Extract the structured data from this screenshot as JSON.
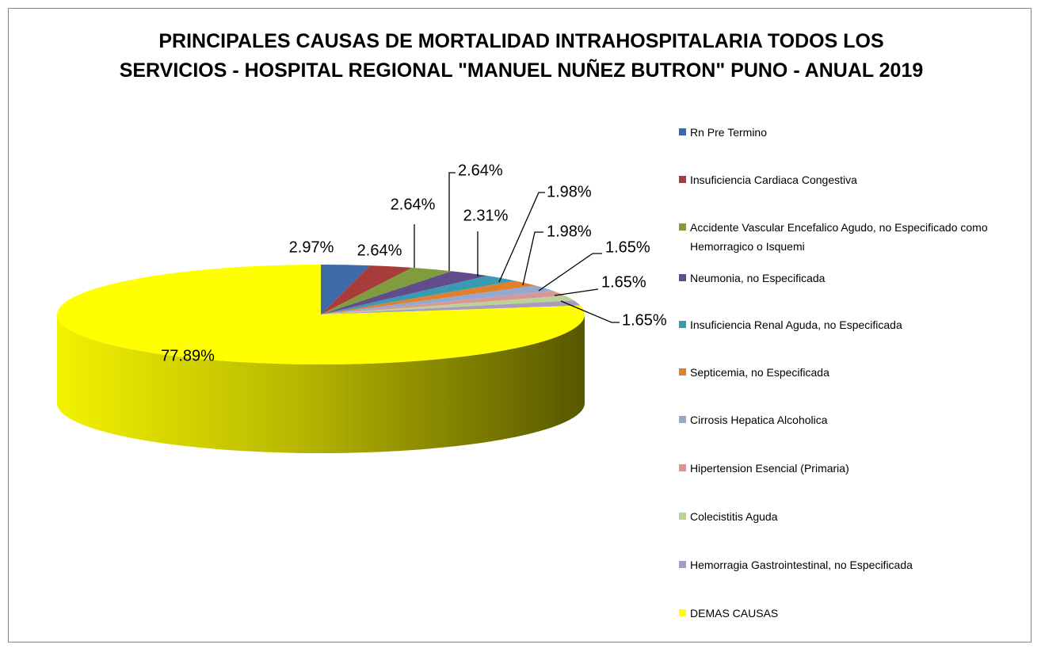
{
  "chart_data": {
    "type": "pie",
    "title": "PRINCIPALES CAUSAS DE MORTALIDAD INTRAHOSPITALARIA TODOS LOS SERVICIOS - HOSPITAL REGIONAL \"MANUEL NUÑEZ BUTRON\" PUNO - ANUAL 2019",
    "categories": [
      "Rn Pre Termino",
      "Insuficiencia Cardiaca Congestiva",
      "Accidente Vascular Encefalico Agudo, no Especificado como Hemorragico o  Isquemi",
      "Neumonia, no Especificada",
      "Insuficiencia Renal Aguda, no Especificada",
      "Septicemia, no Especificada",
      "Cirrosis Hepatica Alcoholica",
      "Hipertension Esencial (Primaria)",
      "Colecistitis Aguda",
      "Hemorragia Gastrointestinal, no Especificada",
      "DEMAS CAUSAS"
    ],
    "values": [
      2.97,
      2.64,
      2.64,
      2.64,
      2.31,
      1.98,
      1.98,
      1.65,
      1.65,
      1.65,
      77.89
    ],
    "value_labels": [
      "2.97%",
      "2.64%",
      "2.64%",
      "2.64%",
      "2.31%",
      "1.98%",
      "1.98%",
      "1.65%",
      "1.65%",
      "1.65%",
      "77.89%"
    ],
    "colors": [
      "#3d6aa6",
      "#a83c3a",
      "#7f9c3e",
      "#634c8c",
      "#3a9ab2",
      "#e07f2c",
      "#93a9d2",
      "#d99694",
      "#bad293",
      "#a89bbf",
      "#ffff00"
    ],
    "legend": "right"
  }
}
